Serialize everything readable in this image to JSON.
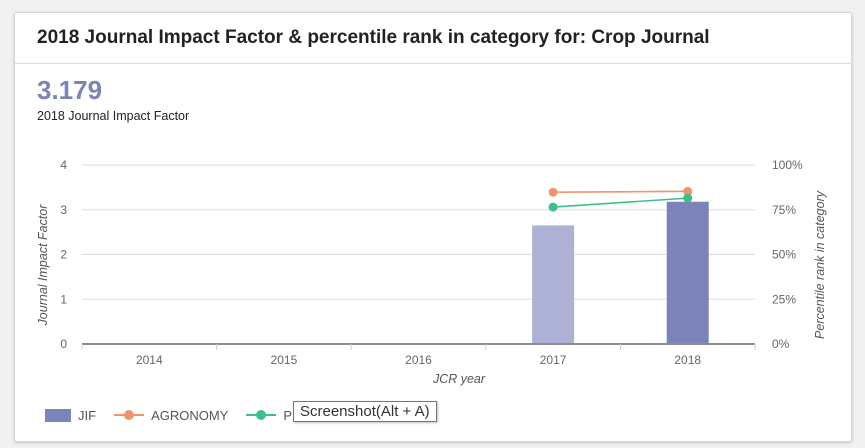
{
  "header": {
    "title": "2018 Journal Impact Factor & percentile rank in category for: Crop Journal"
  },
  "summary": {
    "value": "3.179",
    "caption": "2018 Journal Impact Factor"
  },
  "tooltip": {
    "text": "Screenshot(Alt + A)"
  },
  "chart_data": {
    "type": "bar",
    "categories": [
      "2014",
      "2015",
      "2016",
      "2017",
      "2018"
    ],
    "xlabel": "JCR year",
    "ylabel": "Journal Impact Factor",
    "ylabel_right": "Percentile rank in category",
    "ylim": [
      0,
      4
    ],
    "yticks": [
      "0",
      "1",
      "2",
      "3",
      "4"
    ],
    "ylim_right": [
      0,
      100
    ],
    "yticks_right": [
      "0%",
      "25%",
      "50%",
      "75%",
      "100%"
    ],
    "grid": true,
    "legend_position": "bottom-left",
    "bars": {
      "name": "JIF",
      "values": [
        null,
        null,
        null,
        2.65,
        3.179
      ],
      "colors": [
        "#adb1d5",
        "#adb1d5",
        "#adb1d5",
        "#adb1d5",
        "#7b83b8"
      ]
    },
    "lines": [
      {
        "name": "AGRONOMY",
        "color": "#f0956a",
        "values": [
          null,
          null,
          null,
          84.8,
          85.3
        ]
      },
      {
        "name": "PL",
        "color": "#3dbf8c",
        "values": [
          null,
          null,
          null,
          76.5,
          81.5
        ]
      }
    ]
  }
}
